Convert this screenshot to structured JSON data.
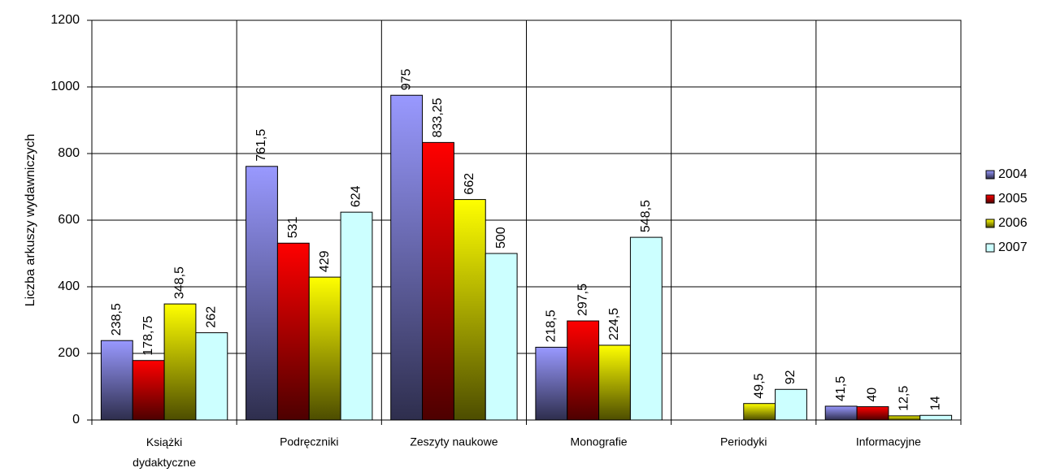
{
  "chart_data": {
    "type": "bar",
    "y_label": "Liczba arkuszy wydawniczych",
    "categories": [
      "Książki dydaktyczne",
      "Podręczniki",
      "Zeszyty naukowe",
      "Monografie",
      "Periodyki",
      "Informacyjne"
    ],
    "series": [
      {
        "name": "2004",
        "color": "#9999ff",
        "values": [
          238.5,
          761.5,
          975,
          218.5,
          null,
          41.5
        ],
        "value_labels": [
          "238,5",
          "761,5",
          "975",
          "218,5",
          null,
          "41,5"
        ]
      },
      {
        "name": "2005",
        "color": "#ff0000",
        "values": [
          178.75,
          531,
          833.25,
          297.5,
          null,
          40
        ],
        "value_labels": [
          "178,75",
          "531",
          "833,25",
          "297,5",
          null,
          "40"
        ]
      },
      {
        "name": "2006",
        "color": "#ffff00",
        "values": [
          348.5,
          429,
          662,
          224.5,
          49.5,
          12.5
        ],
        "value_labels": [
          "348,5",
          "429",
          "662",
          "224,5",
          "49,5",
          "12,5"
        ]
      },
      {
        "name": "2007",
        "color": "#ccffff",
        "values": [
          262,
          624,
          500,
          548.5,
          92,
          14
        ],
        "value_labels": [
          "262",
          "624",
          "500",
          "548,5",
          "92",
          "14"
        ]
      }
    ],
    "ylim": [
      0,
      1200
    ],
    "yticks": [
      0,
      200,
      400,
      600,
      800,
      1000,
      1200
    ],
    "grid": true,
    "legend": "right"
  }
}
